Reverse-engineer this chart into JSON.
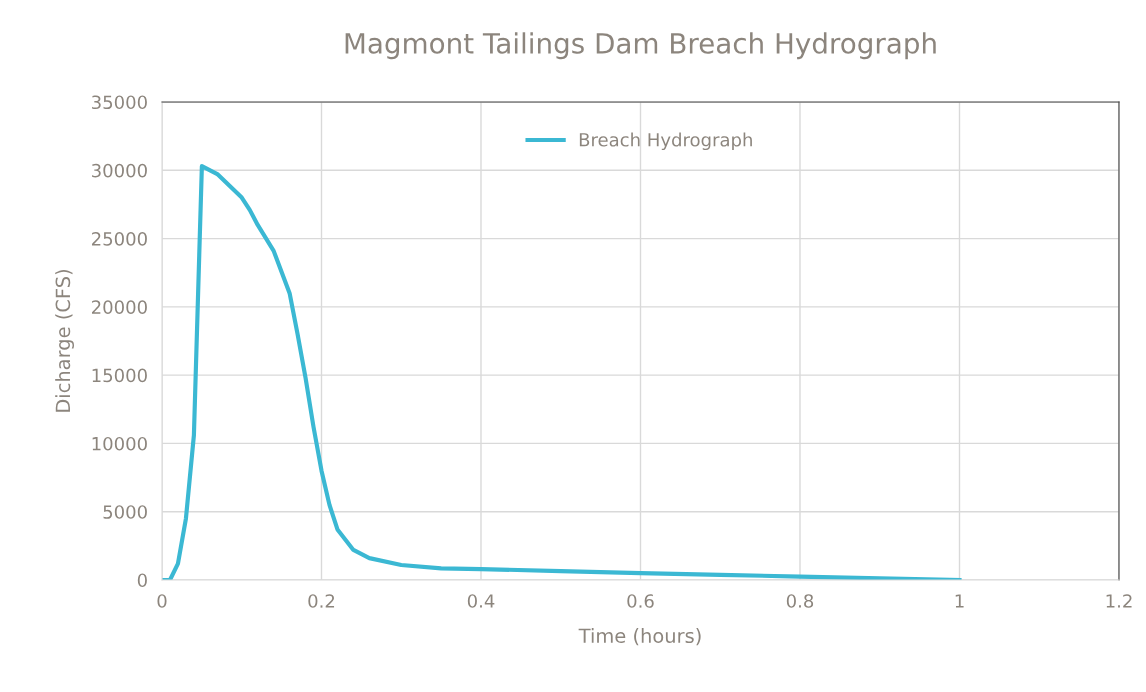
{
  "chart_data": {
    "type": "line",
    "title": "Magmont Tailings Dam Breach Hydrograph",
    "xlabel": "Time (hours)",
    "ylabel": "Dicharge (CFS)",
    "xlim": [
      0,
      1.2
    ],
    "xticks": [
      0,
      0.2,
      0.4,
      0.6,
      0.8,
      1,
      1.2
    ],
    "ylim": [
      0,
      35000
    ],
    "yticks": [
      0,
      5000,
      10000,
      15000,
      20000,
      25000,
      30000,
      35000
    ],
    "grid": true,
    "legend": "top",
    "marker": "none",
    "line_style": "solid",
    "series": [
      {
        "name": "Breach Hydrograph",
        "color": "#3bb8d3",
        "x": [
          0,
          0.01,
          0.02,
          0.03,
          0.04,
          0.05,
          0.07,
          0.1,
          0.11,
          0.12,
          0.14,
          0.16,
          0.17,
          0.18,
          0.19,
          0.2,
          0.21,
          0.22,
          0.24,
          0.26,
          0.3,
          0.35,
          0.4,
          0.5,
          0.6,
          0.7,
          0.8,
          0.9,
          1
        ],
        "values": [
          0,
          0,
          1200,
          4500,
          10600,
          30300,
          29700,
          28000,
          27100,
          26000,
          24100,
          21000,
          18000,
          14800,
          11200,
          8000,
          5500,
          3700,
          2200,
          1600,
          1100,
          850,
          800,
          650,
          500,
          380,
          250,
          120,
          0
        ]
      }
    ]
  }
}
